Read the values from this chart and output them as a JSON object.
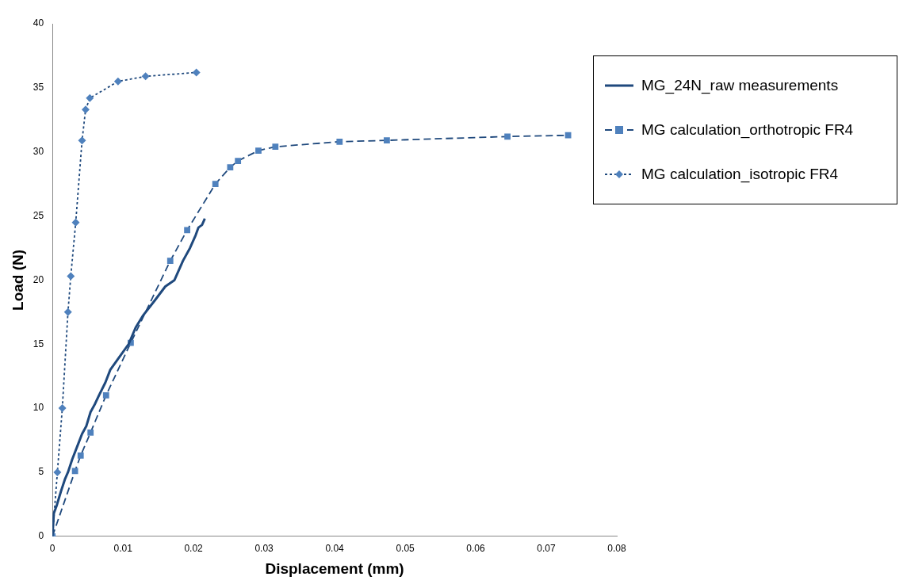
{
  "chart_data": {
    "type": "line",
    "xlabel": "Displacement (mm)",
    "ylabel": "Load (N)",
    "xlim": [
      0,
      0.08
    ],
    "ylim": [
      0,
      40
    ],
    "xticks": [
      0,
      0.01,
      0.02,
      0.03,
      0.04,
      0.05,
      0.06,
      0.07,
      0.08
    ],
    "yticks": [
      0,
      5,
      10,
      15,
      20,
      25,
      30,
      35,
      40
    ],
    "legend": "right",
    "series": [
      {
        "name": "MG_24N_raw measurements",
        "color": "#1f497d",
        "marker": "none",
        "line_style": "solid",
        "x": [
          0,
          0.0002,
          0.0006,
          0.0012,
          0.0018,
          0.0022,
          0.0028,
          0.0035,
          0.0042,
          0.0048,
          0.0054,
          0.006,
          0.0066,
          0.0075,
          0.0082,
          0.0095,
          0.0108,
          0.0118,
          0.0128,
          0.0145,
          0.016,
          0.0173,
          0.0185,
          0.0195,
          0.0203,
          0.0207,
          0.0212,
          0.0216
        ],
        "values": [
          0,
          1.8,
          2.4,
          3.5,
          4.5,
          5,
          6,
          7,
          8,
          8.6,
          9.7,
          10.3,
          11,
          12,
          13,
          14,
          15,
          16.3,
          17.2,
          18.4,
          19.5,
          20,
          21.5,
          22.5,
          23.5,
          24.1,
          24.3,
          24.8
        ]
      },
      {
        "name": "MG calculation_orthotropic FR4",
        "color": "#4f81bd",
        "marker": "square",
        "line_style": "dashed",
        "x": [
          0,
          0.0032,
          0.004,
          0.0054,
          0.0076,
          0.0111,
          0.0167,
          0.0191,
          0.0231,
          0.0252,
          0.0263,
          0.0292,
          0.0316,
          0.0407,
          0.0474,
          0.0645,
          0.0731
        ],
        "values": [
          0,
          5.1,
          6.3,
          8.1,
          11,
          15.1,
          21.5,
          23.9,
          27.5,
          28.8,
          29.3,
          30.1,
          30.4,
          30.8,
          30.9,
          31.2,
          31.3
        ]
      },
      {
        "name": "MG calculation_isotropic FR4",
        "color": "#4f81bd",
        "marker": "diamond",
        "line_style": "dotted",
        "x": [
          0,
          0.0007,
          0.0014,
          0.0022,
          0.0026,
          0.0033,
          0.0042,
          0.0047,
          0.0053,
          0.0093,
          0.0132,
          0.0204
        ],
        "values": [
          0,
          5,
          10,
          17.5,
          20.3,
          24.5,
          30.9,
          33.3,
          34.2,
          35.5,
          35.9,
          36.2
        ]
      }
    ]
  }
}
